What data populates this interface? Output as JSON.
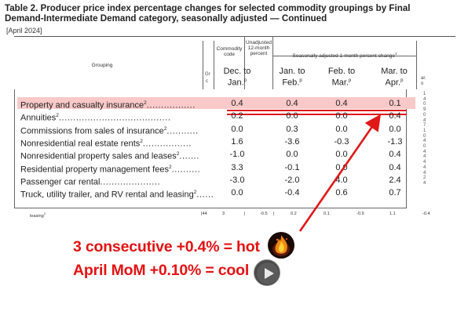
{
  "title": "Table 2. Producer price index percentage changes for selected commodity groupings by Final Demand-Intermediate Demand category, seasonally adjusted — Continued",
  "subtitle": "[April 2024]",
  "header": {
    "grouping": "Grouping",
    "commodity_code": "Commodity code",
    "unadjusted_12_month_percent": "Unadjusted 12-month percent",
    "sa_header": "Seasonally adjusted 1-month percent change",
    "sa_header_sup": "1",
    "gr_cut": "Gr",
    "gr_cut2": "c",
    "right_cut_1": "ar.",
    "right_cut_2": "o",
    "columns": [
      {
        "line1": "Dec. to",
        "line2": "Jan.",
        "sup": "p"
      },
      {
        "line1": "Jan. to",
        "line2": "Feb.",
        "sup": "p"
      },
      {
        "line1": "Feb. to",
        "line2": "Mar.",
        "sup": "p"
      },
      {
        "line1": "Mar. to",
        "line2": "Apr.",
        "sup": "p"
      }
    ]
  },
  "rows": [
    {
      "label": "Property and casualty insurance",
      "sup": "2",
      "dots": ".................",
      "values": [
        "0.4",
        "0.4",
        "0.4",
        "0.1"
      ],
      "highlight": true
    },
    {
      "label": "Annuities",
      "sup": "2",
      "dots": ".......................................",
      "values": [
        "0.2",
        "0.0",
        "0.0",
        "0.4"
      ]
    },
    {
      "label": "Commissions from sales of insurance",
      "sup": "2",
      "dots": "...........",
      "values": [
        "0.0",
        "0.3",
        "0.0",
        "0.0"
      ]
    },
    {
      "label": "Nonresidential real estate rents",
      "sup": "2",
      "dots": ".................",
      "values": [
        "1.6",
        "-3.6",
        "-0.3",
        "-1.3"
      ]
    },
    {
      "label": "Nonresidential property sales and leases",
      "sup": "2",
      "dots": ".......",
      "values": [
        "-1.0",
        "0.0",
        "0.0",
        "0.4"
      ]
    },
    {
      "label": "Residential property management fees",
      "sup": "2",
      "dots": "..........",
      "values": [
        "3.3",
        "-0.1",
        "0.0",
        "0.4"
      ]
    },
    {
      "label": "Passenger car rental",
      "sup": "",
      "dots": ".....................",
      "values": [
        "-3.0",
        "-2.0",
        "4.0",
        "2.4"
      ]
    },
    {
      "label": "Truck, utility trailer, and RV rental and leasing",
      "sup": "2",
      "dots": "......",
      "values": [
        "0.0",
        "-0.4",
        "0.6",
        "0.7"
      ]
    }
  ],
  "right_cut_values": [
    "1",
    "4",
    "0",
    "9",
    "0",
    "4",
    "7",
    "1",
    "0",
    "4",
    "0",
    "4",
    "4",
    "4",
    "4",
    "4",
    "2",
    "4"
  ],
  "footer_row": {
    "label": "leasing",
    "sup": "2",
    "code": "44",
    "cells": [
      "3",
      "|",
      "-0.5",
      "|",
      "0.2",
      "0.1",
      "-0.9",
      "1.1",
      "-0.4"
    ]
  },
  "annotation": {
    "line1": "3 consecutive +0.4% = hot",
    "line2": "April MoM +0.10% = cool",
    "accent": "#e41212",
    "fire_icon": "fire-avatar-icon",
    "play_icon": "play-button-icon"
  }
}
